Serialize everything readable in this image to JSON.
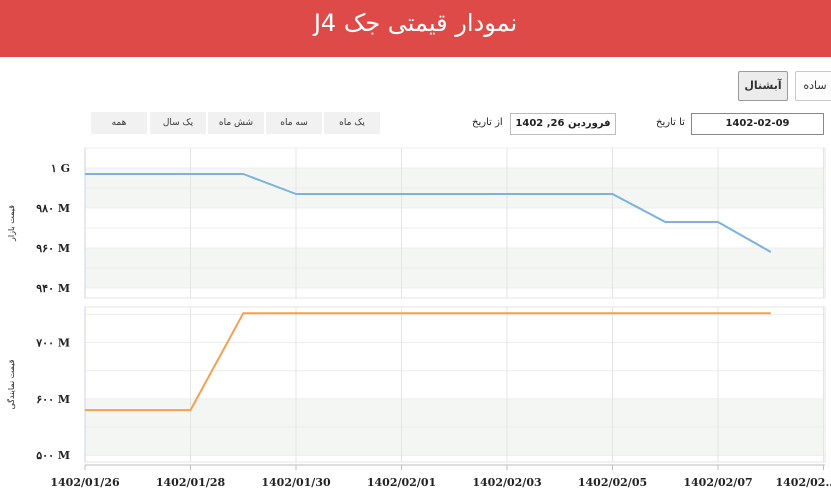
{
  "header": {
    "title": "نمودار قیمتی جک J4"
  },
  "toolbar": {
    "simple_label": "ساده",
    "candle_label": "آبشنال",
    "to_label": "تا تاریخ",
    "to_value": "1402-02-09",
    "from_label": "از تاریخ",
    "from_value": "فروردین 26, 1402",
    "ranges": [
      "یک ماه",
      "سه ماه",
      "شش ماه",
      "یک سال",
      "همه"
    ]
  },
  "colors": {
    "header": "#de4a48",
    "market": "#7ab3df",
    "nav": "#f6a04d"
  },
  "chart_data": [
    {
      "type": "line",
      "ylabel": "قیمت بازار",
      "ylim": [
        935,
        1010
      ],
      "yticks": [
        940,
        960,
        980,
        1000
      ],
      "ytick_labels": [
        "۹۴۰ M",
        "۹۶۰ M",
        "۹۸۰ M",
        "۱ G"
      ],
      "x": [
        "1402/01/26",
        "1402/01/28",
        "1402/01/29",
        "1402/01/30",
        "1402/02/05",
        "1402/02/06",
        "1402/02/07",
        "1402/02/08"
      ],
      "values": [
        997,
        997,
        997,
        987,
        987,
        973,
        973,
        958
      ]
    },
    {
      "type": "line",
      "ylabel": "قیمت نمایندگی",
      "ylim": [
        488,
        763
      ],
      "yticks": [
        500,
        600,
        700
      ],
      "ytick_labels": [
        "۵۰۰ M",
        "۶۰۰ M",
        "۷۰۰ M"
      ],
      "x": [
        "1402/01/26",
        "1402/01/28",
        "1402/01/29",
        "1402/02/08"
      ],
      "values": [
        580,
        580,
        752,
        752
      ]
    }
  ],
  "x_axis": {
    "ticks": [
      "1402/01/26",
      "1402/01/28",
      "1402/01/30",
      "1402/02/01",
      "1402/02/03",
      "1402/02/05",
      "1402/02/07",
      "1402/02..."
    ]
  }
}
